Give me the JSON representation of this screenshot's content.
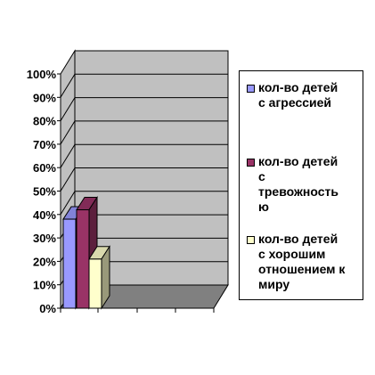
{
  "chart_data": {
    "type": "bar",
    "categories": [
      ""
    ],
    "series": [
      {
        "name": "кол-во детей\nс агрессией",
        "values": [
          38
        ],
        "color": "#9999ff"
      },
      {
        "name": "кол-во детей\nс\nтревожность\nю",
        "values": [
          42
        ],
        "color": "#993366"
      },
      {
        "name": "кол-во детей\nс хорошим\nотношением к\nмиру",
        "values": [
          21
        ],
        "color": "#ffffcc"
      }
    ],
    "ylim": [
      0,
      100
    ],
    "yticks": [
      "0%",
      "10%",
      "20%",
      "30%",
      "40%",
      "50%",
      "60%",
      "70%",
      "80%",
      "90%",
      "100%"
    ],
    "grid": true,
    "legend_position": "right",
    "wall_color": "#c0c0c0",
    "floor_color": "#808080",
    "title": "",
    "xlabel": "",
    "ylabel": ""
  }
}
